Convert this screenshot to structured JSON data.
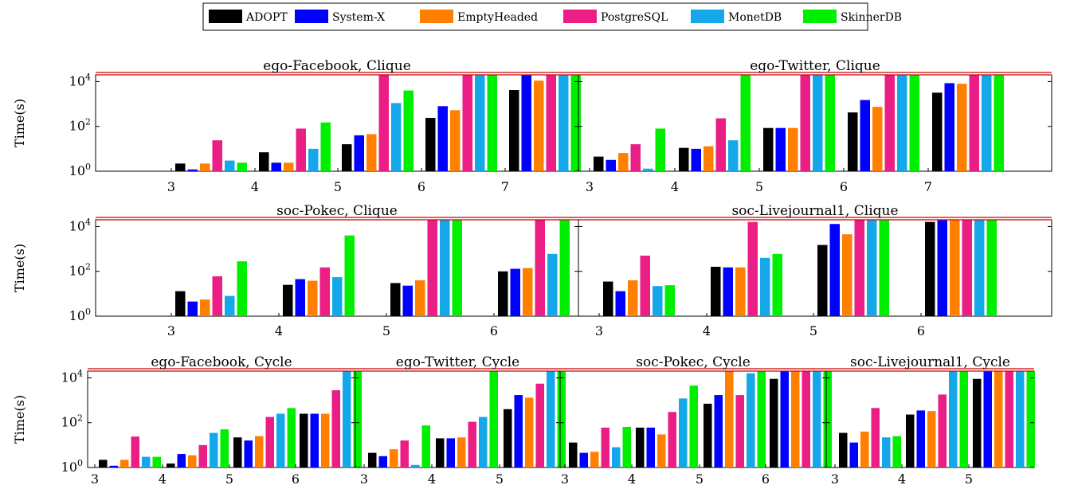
{
  "legend": {
    "placement": "top-center",
    "items": [
      {
        "name": "ADOPT",
        "color": "#000000"
      },
      {
        "name": "System-X",
        "color": "#0000ff"
      },
      {
        "name": "EmptyHeaded",
        "color": "#ff8000"
      },
      {
        "name": "PostgreSQL",
        "color": "#ea1e85"
      },
      {
        "name": "MonetDB",
        "color": "#14a8ea"
      },
      {
        "name": "SkinnerDB",
        "color": "#00ee00"
      }
    ]
  },
  "ylabel": "Time(s)",
  "timeout_color": "#cc0000",
  "chart_data": [
    {
      "type": "bar",
      "title": "ego-Facebook, Clique",
      "yscale": "log",
      "ylim": [
        1,
        20000
      ],
      "yticks": [
        "10^0",
        "10^2",
        "10^4"
      ],
      "timeout_line": 20000,
      "grid": false,
      "categories": [
        "3",
        "4",
        "5",
        "6",
        "7"
      ],
      "series": [
        {
          "name": "ADOPT",
          "values": [
            2.2,
            7,
            16,
            240,
            4200
          ]
        },
        {
          "name": "System-X",
          "values": [
            1.2,
            2.4,
            40,
            800,
            20000
          ]
        },
        {
          "name": "EmptyHeaded",
          "values": [
            2.2,
            2.4,
            45,
            530,
            11000
          ]
        },
        {
          "name": "PostgreSQL",
          "values": [
            24,
            80,
            20000,
            20000,
            20000
          ]
        },
        {
          "name": "MonetDB",
          "values": [
            3,
            10,
            1100,
            20000,
            20000
          ]
        },
        {
          "name": "SkinnerDB",
          "values": [
            2.4,
            150,
            4000,
            20000,
            20000
          ]
        }
      ]
    },
    {
      "type": "bar",
      "title": "ego-Twitter, Clique",
      "yscale": "log",
      "ylim": [
        1,
        20000
      ],
      "yticks": [
        "10^0",
        "10^2",
        "10^4"
      ],
      "timeout_line": 20000,
      "grid": false,
      "categories": [
        "3",
        "4",
        "5",
        "6",
        "7"
      ],
      "series": [
        {
          "name": "ADOPT",
          "values": [
            4.5,
            11,
            85,
            420,
            3200
          ]
        },
        {
          "name": "System-X",
          "values": [
            3.2,
            10,
            85,
            1500,
            8500
          ]
        },
        {
          "name": "EmptyHeaded",
          "values": [
            6.5,
            13,
            85,
            750,
            8000
          ]
        },
        {
          "name": "PostgreSQL",
          "values": [
            16,
            230,
            20000,
            20000,
            20000
          ]
        },
        {
          "name": "MonetDB",
          "values": [
            1.3,
            24,
            20000,
            20000,
            20000
          ]
        },
        {
          "name": "SkinnerDB",
          "values": [
            80,
            20000,
            20000,
            20000,
            20000
          ]
        }
      ]
    },
    {
      "type": "bar",
      "title": "soc-Pokec, Clique",
      "yscale": "log",
      "ylim": [
        1,
        20000
      ],
      "yticks": [
        "10^0",
        "10^2",
        "10^4"
      ],
      "timeout_line": 20000,
      "grid": false,
      "categories": [
        "3",
        "4",
        "5",
        "6"
      ],
      "series": [
        {
          "name": "ADOPT",
          "values": [
            13,
            25,
            30,
            100
          ]
        },
        {
          "name": "System-X",
          "values": [
            4.5,
            45,
            23,
            130
          ]
        },
        {
          "name": "EmptyHeaded",
          "values": [
            5.5,
            38,
            40,
            140
          ]
        },
        {
          "name": "PostgreSQL",
          "values": [
            60,
            150,
            20000,
            20000
          ]
        },
        {
          "name": "MonetDB",
          "values": [
            8,
            55,
            20000,
            600
          ]
        },
        {
          "name": "SkinnerDB",
          "values": [
            280,
            4000,
            20000,
            20000
          ]
        }
      ]
    },
    {
      "type": "bar",
      "title": "soc-Livejournal1, Clique",
      "yscale": "log",
      "ylim": [
        1,
        20000
      ],
      "yticks": [
        "10^0",
        "10^2",
        "10^4"
      ],
      "timeout_line": 20000,
      "grid": false,
      "categories": [
        "3",
        "4",
        "5",
        "6"
      ],
      "series": [
        {
          "name": "ADOPT",
          "values": [
            35,
            160,
            1500,
            16000
          ]
        },
        {
          "name": "System-X",
          "values": [
            13,
            150,
            13000,
            20000
          ]
        },
        {
          "name": "EmptyHeaded",
          "values": [
            40,
            150,
            4500,
            20000
          ]
        },
        {
          "name": "PostgreSQL",
          "values": [
            500,
            16000,
            20000,
            20000
          ]
        },
        {
          "name": "MonetDB",
          "values": [
            22,
            400,
            20000,
            20000
          ]
        },
        {
          "name": "SkinnerDB",
          "values": [
            24,
            600,
            20000,
            20000
          ]
        }
      ]
    },
    {
      "type": "bar",
      "title": "ego-Facebook, Cycle",
      "yscale": "log",
      "ylim": [
        1,
        20000
      ],
      "yticks": [
        "10^0",
        "10^2",
        "10^4"
      ],
      "timeout_line": 20000,
      "grid": false,
      "categories": [
        "3",
        "4",
        "5",
        "6"
      ],
      "series": [
        {
          "name": "ADOPT",
          "values": [
            2.2,
            1.5,
            22,
            250
          ]
        },
        {
          "name": "System-X",
          "values": [
            1.2,
            4,
            16,
            250
          ]
        },
        {
          "name": "EmptyHeaded",
          "values": [
            2.2,
            3.5,
            25,
            250
          ]
        },
        {
          "name": "PostgreSQL",
          "values": [
            24,
            10,
            180,
            2800
          ]
        },
        {
          "name": "MonetDB",
          "values": [
            3,
            35,
            250,
            20000
          ]
        },
        {
          "name": "SkinnerDB",
          "values": [
            3,
            50,
            450,
            20000
          ]
        }
      ]
    },
    {
      "type": "bar",
      "title": "ego-Twitter, Cycle",
      "yscale": "log",
      "ylim": [
        1,
        20000
      ],
      "yticks": [
        "10^0",
        "10^2",
        "10^4"
      ],
      "timeout_line": 20000,
      "grid": false,
      "categories": [
        "3",
        "4",
        "5"
      ],
      "series": [
        {
          "name": "ADOPT",
          "values": [
            4.5,
            20,
            400
          ]
        },
        {
          "name": "System-X",
          "values": [
            3.2,
            20,
            1700
          ]
        },
        {
          "name": "EmptyHeaded",
          "values": [
            6.5,
            22,
            1300
          ]
        },
        {
          "name": "PostgreSQL",
          "values": [
            16,
            110,
            5500
          ]
        },
        {
          "name": "MonetDB",
          "values": [
            1.3,
            180,
            20000
          ]
        },
        {
          "name": "SkinnerDB",
          "values": [
            75,
            20000,
            20000
          ]
        }
      ]
    },
    {
      "type": "bar",
      "title": "soc-Pokec, Cycle",
      "yscale": "log",
      "ylim": [
        1,
        20000
      ],
      "yticks": [
        "10^0",
        "10^2",
        "10^4"
      ],
      "timeout_line": 20000,
      "grid": false,
      "categories": [
        "3",
        "4",
        "5",
        "6"
      ],
      "series": [
        {
          "name": "ADOPT",
          "values": [
            13,
            60,
            700,
            9000
          ]
        },
        {
          "name": "System-X",
          "values": [
            4.5,
            60,
            1700,
            20000
          ]
        },
        {
          "name": "EmptyHeaded",
          "values": [
            5,
            30,
            20000,
            20000
          ]
        },
        {
          "name": "PostgreSQL",
          "values": [
            60,
            300,
            1700,
            20000
          ]
        },
        {
          "name": "MonetDB",
          "values": [
            8,
            1200,
            16000,
            20000
          ]
        },
        {
          "name": "SkinnerDB",
          "values": [
            65,
            4500,
            20000,
            20000
          ]
        }
      ]
    },
    {
      "type": "bar",
      "title": "soc-Livejournal1, Cycle",
      "yscale": "log",
      "ylim": [
        1,
        20000
      ],
      "yticks": [
        "10^0",
        "10^2",
        "10^4"
      ],
      "timeout_line": 20000,
      "grid": false,
      "categories": [
        "3",
        "4",
        "5"
      ],
      "series": [
        {
          "name": "ADOPT",
          "values": [
            35,
            230,
            9000
          ]
        },
        {
          "name": "System-X",
          "values": [
            13,
            350,
            20000
          ]
        },
        {
          "name": "EmptyHeaded",
          "values": [
            40,
            330,
            20000
          ]
        },
        {
          "name": "PostgreSQL",
          "values": [
            450,
            1800,
            20000
          ]
        },
        {
          "name": "MonetDB",
          "values": [
            22,
            20000,
            20000
          ]
        },
        {
          "name": "SkinnerDB",
          "values": [
            25,
            20000,
            20000
          ]
        }
      ]
    }
  ]
}
